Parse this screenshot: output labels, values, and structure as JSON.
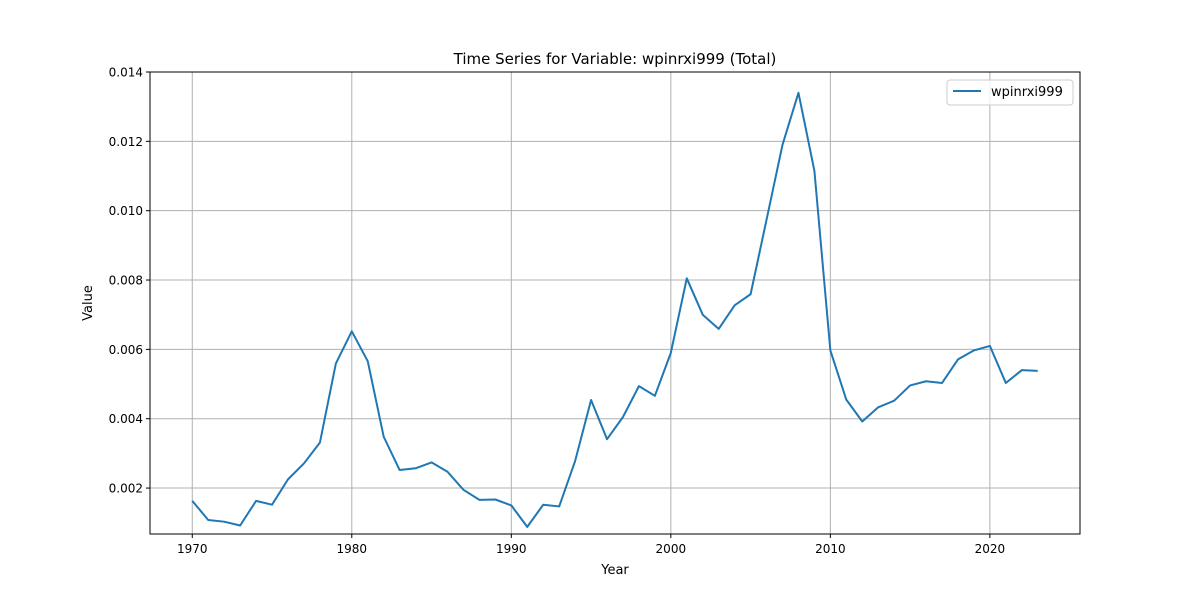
{
  "chart_data": {
    "type": "line",
    "title": "Time Series for Variable: wpinrxi999 (Total)",
    "xlabel": "Year",
    "ylabel": "Value",
    "xlim": [
      1967.35,
      2025.65
    ],
    "ylim": [
      0.000675,
      0.014
    ],
    "x_ticks": [
      1970,
      1980,
      1990,
      2000,
      2010,
      2020
    ],
    "y_ticks": [
      0.002,
      0.004,
      0.006,
      0.008,
      0.01,
      0.012,
      0.014
    ],
    "y_tick_labels": [
      "0.002",
      "0.004",
      "0.006",
      "0.008",
      "0.010",
      "0.012",
      "0.014"
    ],
    "grid": true,
    "legend_position": "top-right",
    "series": [
      {
        "name": "wpinrxi999",
        "color": "#1f77b4",
        "x": [
          1970,
          1971,
          1972,
          1973,
          1974,
          1975,
          1976,
          1977,
          1978,
          1979,
          1980,
          1981,
          1982,
          1983,
          1984,
          1985,
          1986,
          1987,
          1988,
          1989,
          1990,
          1991,
          1992,
          1993,
          1994,
          1995,
          1996,
          1997,
          1998,
          1999,
          2000,
          2001,
          2002,
          2003,
          2004,
          2005,
          2006,
          2007,
          2008,
          2009,
          2010,
          2011,
          2012,
          2013,
          2014,
          2015,
          2016,
          2017,
          2018,
          2019,
          2020,
          2021,
          2022,
          2023
        ],
        "values": [
          0.00163,
          0.00108,
          0.00103,
          0.00092,
          0.00163,
          0.00152,
          0.00225,
          0.00271,
          0.00331,
          0.00559,
          0.00652,
          0.00566,
          0.00348,
          0.00252,
          0.00257,
          0.00274,
          0.00247,
          0.00195,
          0.00166,
          0.00167,
          0.0015,
          0.00088,
          0.00152,
          0.00147,
          0.00278,
          0.00454,
          0.00341,
          0.00405,
          0.00494,
          0.00466,
          0.0059,
          0.00805,
          0.007,
          0.00659,
          0.00727,
          0.00759,
          0.00974,
          0.0119,
          0.0134,
          0.01115,
          0.00597,
          0.00455,
          0.00392,
          0.00433,
          0.00452,
          0.00496,
          0.00508,
          0.00503,
          0.00571,
          0.00597,
          0.0061,
          0.00503,
          0.0054,
          0.00538
        ]
      }
    ]
  }
}
